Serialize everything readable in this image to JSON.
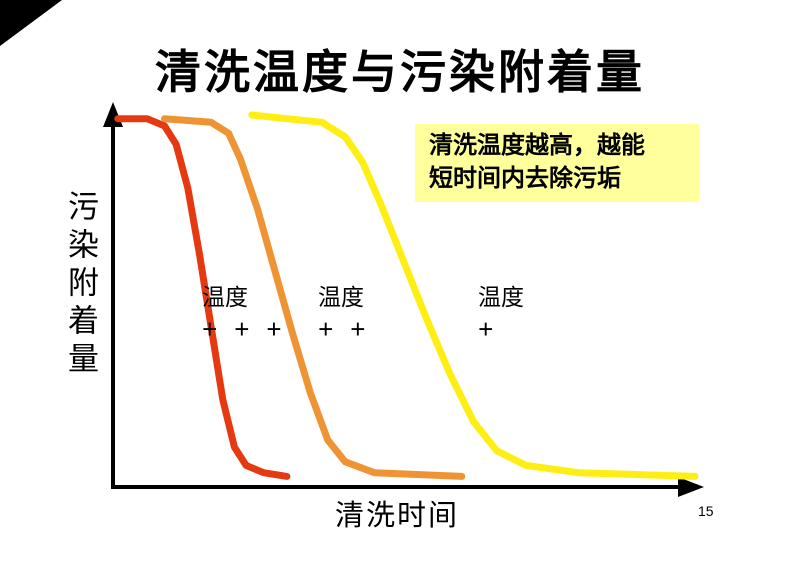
{
  "slide": {
    "title": "清洗温度与污染附着量",
    "page_number": "15",
    "annotation": {
      "line1": "清洗温度越高，越能",
      "line2": "短时间内去除污垢",
      "bg_color": "#ffff9c"
    },
    "y_axis_label": "污染附着量",
    "x_axis_label": "清洗时间"
  },
  "chart_data": {
    "type": "line",
    "title": "清洗温度与污染附着量",
    "xlabel": "清洗时间",
    "ylabel": "污染附着量",
    "annotation": "清洗温度越高，越能短时间内去除污垢",
    "axes_unlabeled": true,
    "xlim": [
      0,
      100
    ],
    "ylim": [
      0,
      100
    ],
    "legend_position": "inline-labels-on-plot",
    "grid": false,
    "series": [
      {
        "id": "temp-high",
        "label_line1": "温度",
        "label_line2": "+ + +",
        "color": "#e53911",
        "points": [
          [
            1,
            99
          ],
          [
            6,
            99
          ],
          [
            9,
            97
          ],
          [
            11,
            92
          ],
          [
            13,
            80
          ],
          [
            15,
            62
          ],
          [
            17,
            42
          ],
          [
            19,
            22
          ],
          [
            21,
            9
          ],
          [
            23,
            4
          ],
          [
            26,
            2
          ],
          [
            30,
            1
          ]
        ]
      },
      {
        "id": "temp-mid",
        "label_line1": "温度",
        "label_line2": "+ +",
        "color": "#ef9434",
        "points": [
          [
            9,
            99
          ],
          [
            17,
            98
          ],
          [
            20,
            95
          ],
          [
            22,
            88
          ],
          [
            25,
            74
          ],
          [
            28,
            57
          ],
          [
            31,
            40
          ],
          [
            34,
            24
          ],
          [
            37,
            11
          ],
          [
            40,
            5
          ],
          [
            45,
            2
          ],
          [
            60,
            1
          ]
        ]
      },
      {
        "id": "temp-low",
        "label_line1": "温度",
        "label_line2": "+",
        "color": "#ffee13",
        "points": [
          [
            24,
            100
          ],
          [
            36,
            98
          ],
          [
            40,
            94
          ],
          [
            43,
            87
          ],
          [
            46,
            76
          ],
          [
            50,
            60
          ],
          [
            54,
            44
          ],
          [
            58,
            29
          ],
          [
            62,
            16
          ],
          [
            66,
            8
          ],
          [
            71,
            4
          ],
          [
            80,
            2
          ],
          [
            100,
            1
          ]
        ]
      }
    ]
  }
}
